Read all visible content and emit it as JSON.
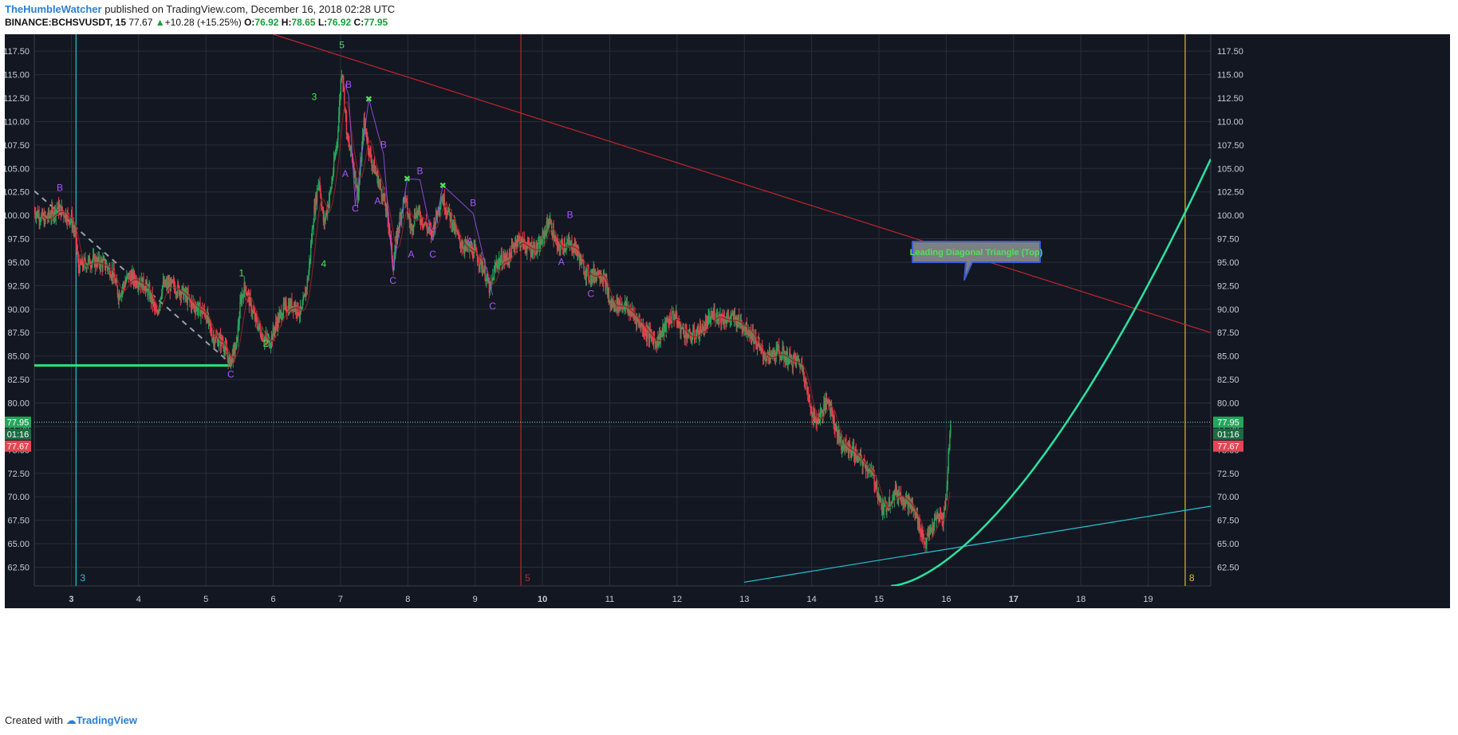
{
  "header": {
    "author": "TheHumbleWatcher",
    "published": " published on TradingView.com, December 16, 2018 02:28 UTC",
    "symbol": "BINANCE:BCHSVUSDT, 15",
    "last": "77.67",
    "up_arrow": "▲",
    "change": "+10.28 (+15.25%)",
    "o_label": "O:",
    "o": "76.92",
    "h_label": "H:",
    "h": "78.65",
    "l_label": "L:",
    "l": "76.92",
    "c_label": "C:",
    "c": "77.95"
  },
  "footer": {
    "created_with": "Created with",
    "brand": "TradingView"
  },
  "colors": {
    "background": "#131722",
    "grid": "#2a2e39",
    "candle_up": "#26a65b",
    "candle_down": "#ef3a4a",
    "wave_label": "#4ce35a",
    "abc_label": "#a855f7",
    "trendline": "#c0262b",
    "support": "#2be37b",
    "channel": "#22c7d4",
    "curve": "#2be3a0",
    "cycle_cyan": "#22c7d4",
    "cycle_red": "#c0262b",
    "cycle_yellow": "#d4c022"
  },
  "chart_data": {
    "type": "candlestick",
    "ylim": [
      60.5,
      119.3
    ],
    "xlim": [
      2.45,
      19.93
    ],
    "y_ticks": [
      "62.50",
      "65.00",
      "67.50",
      "70.00",
      "72.50",
      "75.00",
      "77.50",
      "80.00",
      "82.50",
      "85.00",
      "87.50",
      "90.00",
      "92.50",
      "95.00",
      "97.50",
      "100.00",
      "102.50",
      "105.00",
      "107.50",
      "110.00",
      "112.50",
      "115.00",
      "117.50"
    ],
    "x_ticks": [
      {
        "label": "3",
        "x": 3,
        "bold": true
      },
      {
        "label": "4",
        "x": 4
      },
      {
        "label": "5",
        "x": 5
      },
      {
        "label": "6",
        "x": 6
      },
      {
        "label": "7",
        "x": 7
      },
      {
        "label": "8",
        "x": 8
      },
      {
        "label": "9",
        "x": 9
      },
      {
        "label": "10",
        "x": 10,
        "bold": true
      },
      {
        "label": "11",
        "x": 11
      },
      {
        "label": "12",
        "x": 12
      },
      {
        "label": "13",
        "x": 13
      },
      {
        "label": "14",
        "x": 14
      },
      {
        "label": "15",
        "x": 15
      },
      {
        "label": "16",
        "x": 16
      },
      {
        "label": "17",
        "x": 17,
        "bold": true
      },
      {
        "label": "18",
        "x": 18
      },
      {
        "label": "19",
        "x": 19
      }
    ],
    "price_path": [
      [
        2.45,
        100.5
      ],
      [
        2.6,
        99.5
      ],
      [
        2.8,
        100.8
      ],
      [
        3.0,
        99.6
      ],
      [
        3.07,
        97.5
      ],
      [
        3.1,
        94.5
      ],
      [
        3.3,
        95.2
      ],
      [
        3.5,
        94.8
      ],
      [
        3.62,
        93.8
      ],
      [
        3.7,
        91.5
      ],
      [
        3.85,
        93.5
      ],
      [
        4.0,
        93.0
      ],
      [
        4.1,
        92.5
      ],
      [
        4.2,
        91.0
      ],
      [
        4.27,
        89.2
      ],
      [
        4.35,
        92.5
      ],
      [
        4.5,
        92.5
      ],
      [
        4.65,
        91.8
      ],
      [
        4.8,
        90.5
      ],
      [
        5.0,
        89.5
      ],
      [
        5.1,
        87.0
      ],
      [
        5.25,
        86.5
      ],
      [
        5.35,
        84.3
      ],
      [
        5.45,
        86.0
      ],
      [
        5.52,
        91.0
      ],
      [
        5.58,
        92.5
      ],
      [
        5.7,
        89.5
      ],
      [
        5.85,
        87.0
      ],
      [
        5.95,
        86.5
      ],
      [
        6.05,
        88.5
      ],
      [
        6.15,
        90.0
      ],
      [
        6.3,
        90.5
      ],
      [
        6.42,
        89.5
      ],
      [
        6.52,
        93.5
      ],
      [
        6.6,
        100.0
      ],
      [
        6.68,
        104.0
      ],
      [
        6.75,
        99.0
      ],
      [
        6.85,
        102.5
      ],
      [
        6.95,
        108.0
      ],
      [
        7.02,
        116.0
      ],
      [
        7.1,
        108.0
      ],
      [
        7.18,
        106.0
      ],
      [
        7.26,
        102.0
      ],
      [
        7.35,
        110.0
      ],
      [
        7.45,
        106.0
      ],
      [
        7.55,
        104.0
      ],
      [
        7.65,
        101.5
      ],
      [
        7.72,
        99.0
      ],
      [
        7.78,
        94.5
      ],
      [
        7.85,
        98.5
      ],
      [
        7.95,
        102.0
      ],
      [
        8.05,
        98.5
      ],
      [
        8.12,
        100.5
      ],
      [
        8.22,
        99.5
      ],
      [
        8.35,
        98.0
      ],
      [
        8.5,
        102.0
      ],
      [
        8.62,
        100.0
      ],
      [
        8.78,
        97.0
      ],
      [
        9.0,
        96.0
      ],
      [
        9.12,
        94.5
      ],
      [
        9.22,
        92.0
      ],
      [
        9.32,
        95.0
      ],
      [
        9.5,
        95.5
      ],
      [
        9.62,
        97.5
      ],
      [
        9.8,
        96.5
      ],
      [
        9.95,
        96.5
      ],
      [
        10.1,
        99.5
      ],
      [
        10.22,
        96.5
      ],
      [
        10.35,
        97.0
      ],
      [
        10.5,
        96.5
      ],
      [
        10.6,
        94.5
      ],
      [
        10.7,
        93.5
      ],
      [
        10.85,
        94.0
      ],
      [
        10.95,
        92.5
      ],
      [
        11.0,
        90.5
      ],
      [
        11.2,
        90.5
      ],
      [
        11.4,
        89.0
      ],
      [
        11.55,
        87.5
      ],
      [
        11.7,
        86.5
      ],
      [
        11.85,
        88.5
      ],
      [
        11.95,
        89.5
      ],
      [
        12.05,
        88.0
      ],
      [
        12.2,
        87.0
      ],
      [
        12.4,
        88.0
      ],
      [
        12.55,
        89.5
      ],
      [
        12.7,
        89.0
      ],
      [
        12.85,
        89.0
      ],
      [
        12.95,
        88.5
      ],
      [
        13.1,
        87.5
      ],
      [
        13.25,
        85.5
      ],
      [
        13.35,
        84.8
      ],
      [
        13.5,
        85.5
      ],
      [
        13.7,
        84.5
      ],
      [
        13.8,
        84.5
      ],
      [
        13.88,
        83.5
      ],
      [
        13.95,
        80.5
      ],
      [
        14.05,
        78.0
      ],
      [
        14.15,
        79.0
      ],
      [
        14.25,
        80.5
      ],
      [
        14.35,
        77.5
      ],
      [
        14.45,
        75.5
      ],
      [
        14.6,
        75.0
      ],
      [
        14.7,
        74.0
      ],
      [
        14.85,
        73.0
      ],
      [
        14.95,
        71.5
      ],
      [
        15.05,
        68.5
      ],
      [
        15.15,
        69.5
      ],
      [
        15.25,
        70.5
      ],
      [
        15.35,
        70.0
      ],
      [
        15.48,
        69.0
      ],
      [
        15.58,
        67.5
      ],
      [
        15.68,
        65.0
      ],
      [
        15.78,
        66.5
      ],
      [
        15.88,
        68.0
      ],
      [
        15.95,
        67.5
      ],
      [
        16.0,
        70.0
      ],
      [
        16.04,
        75.5
      ],
      [
        16.07,
        77.67
      ]
    ],
    "annotations": [
      {
        "text": "B",
        "x": 2.83,
        "y": 102.6,
        "color": "abc"
      },
      {
        "text": "C",
        "x": 5.37,
        "y": 82.7,
        "color": "abc"
      },
      {
        "text": "1",
        "x": 5.53,
        "y": 93.5,
        "color": "wave"
      },
      {
        "text": "2",
        "x": 5.89,
        "y": 86.0,
        "color": "wave"
      },
      {
        "text": "3",
        "x": 6.61,
        "y": 112.3,
        "color": "wave"
      },
      {
        "text": "4",
        "x": 6.75,
        "y": 94.5,
        "color": "wave"
      },
      {
        "text": "5",
        "x": 7.02,
        "y": 117.8,
        "color": "wave"
      },
      {
        "text": "B",
        "x": 7.12,
        "y": 113.6,
        "color": "abc"
      },
      {
        "text": "A",
        "x": 7.07,
        "y": 104.1,
        "color": "abc"
      },
      {
        "text": "C",
        "x": 7.22,
        "y": 100.4,
        "color": "abc"
      },
      {
        "text": "B",
        "x": 7.64,
        "y": 107.2,
        "color": "abc"
      },
      {
        "text": "A",
        "x": 7.55,
        "y": 101.2,
        "color": "abc"
      },
      {
        "text": "C",
        "x": 7.78,
        "y": 92.7,
        "color": "abc"
      },
      {
        "text": "A",
        "x": 8.05,
        "y": 95.5,
        "color": "abc"
      },
      {
        "text": "B",
        "x": 8.18,
        "y": 104.4,
        "color": "abc"
      },
      {
        "text": "C",
        "x": 8.37,
        "y": 95.5,
        "color": "abc"
      },
      {
        "text": "B",
        "x": 8.97,
        "y": 101.0,
        "color": "abc"
      },
      {
        "text": "A",
        "x": 8.92,
        "y": 96.9,
        "color": "abc"
      },
      {
        "text": "C",
        "x": 9.26,
        "y": 90.0,
        "color": "abc"
      },
      {
        "text": "B",
        "x": 10.41,
        "y": 99.7,
        "color": "abc"
      },
      {
        "text": "A",
        "x": 10.28,
        "y": 94.7,
        "color": "abc"
      },
      {
        "text": "C",
        "x": 10.72,
        "y": 91.3,
        "color": "abc"
      }
    ],
    "x_marks": [
      {
        "x": 7.42,
        "y": 112.4
      },
      {
        "x": 7.99,
        "y": 103.9
      },
      {
        "x": 8.52,
        "y": 103.2
      }
    ],
    "callout": "Leading Diagonal Triangle (Top)",
    "cycle_lines": [
      {
        "label": "3",
        "x": 3.07,
        "color": "cycle_cyan"
      },
      {
        "label": "5",
        "x": 9.68,
        "color": "cycle_red"
      },
      {
        "label": "8",
        "x": 19.55,
        "color": "cycle_yellow"
      }
    ],
    "last_price": "77.95",
    "countdown": "01:16",
    "prev_price": "77.67",
    "prev_price_hidden": "75.00"
  }
}
